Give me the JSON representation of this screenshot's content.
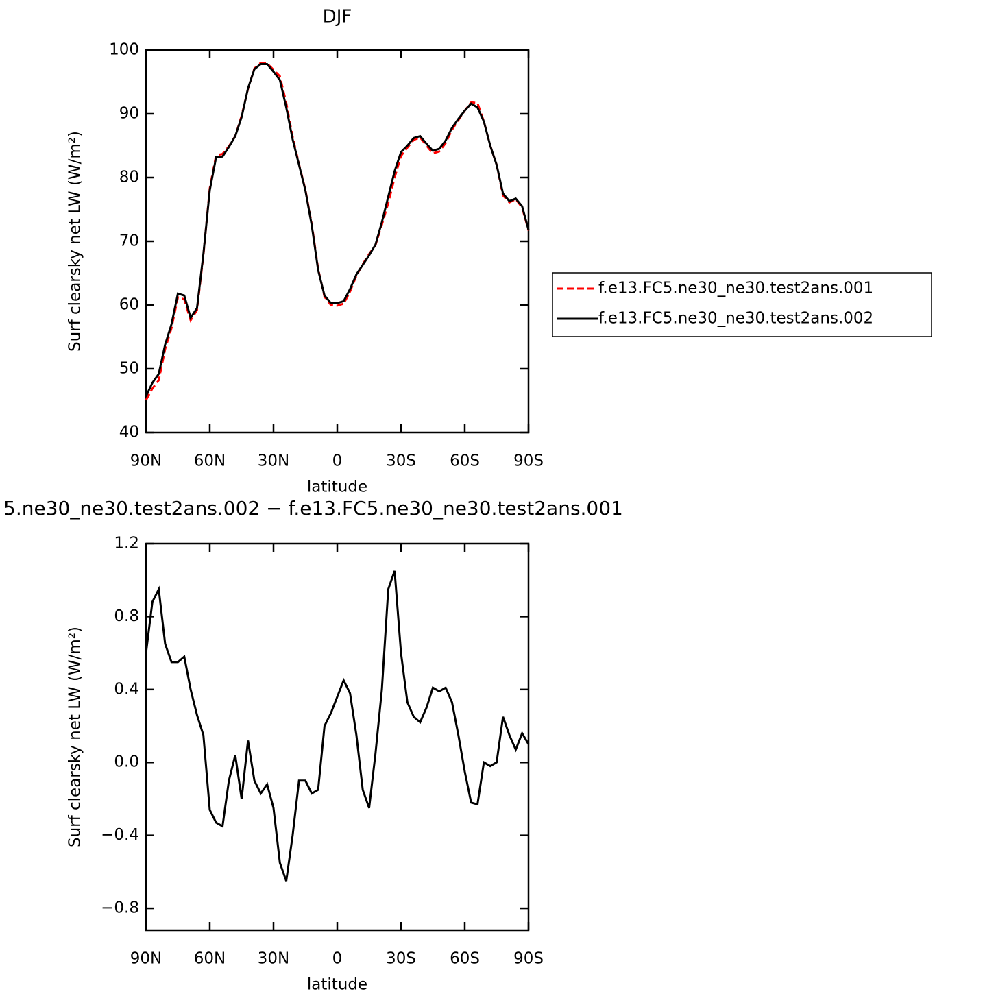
{
  "chart_data": [
    {
      "type": "line",
      "title": "DJF",
      "x_label": "latitude",
      "y_label": "Surf clearsky net LW (W/m²)",
      "x": [
        90,
        87,
        84,
        81,
        78,
        75,
        72,
        69,
        66,
        63,
        60,
        57,
        54,
        51,
        48,
        45,
        42,
        39,
        36,
        33,
        30,
        27,
        24,
        21,
        18,
        15,
        12,
        9,
        6,
        3,
        0,
        -3,
        -6,
        -9,
        -12,
        -15,
        -18,
        -21,
        -24,
        -27,
        -30,
        -33,
        -36,
        -39,
        -42,
        -45,
        -48,
        -51,
        -54,
        -57,
        -60,
        -63,
        -66,
        -69,
        -72,
        -75,
        -78,
        -81,
        -84,
        -87,
        -90
      ],
      "xlim": [
        90,
        -90
      ],
      "xticks": [
        {
          "value": 90,
          "label": "90N"
        },
        {
          "value": 60,
          "label": "60N"
        },
        {
          "value": 30,
          "label": "30N"
        },
        0,
        {
          "value": -30,
          "label": "30S"
        },
        {
          "value": -60,
          "label": "60S"
        },
        {
          "value": -90,
          "label": "90S"
        }
      ],
      "ylim": [
        40,
        100
      ],
      "yticks": [
        40,
        50,
        60,
        70,
        80,
        90,
        100
      ],
      "legend": "right",
      "series": [
        {
          "name": "f.e13.FC5.ne30_ne30.test2ans.001",
          "color": "#ff0000",
          "style": "dashed",
          "values": [
            45.1,
            46.9,
            48.2,
            53.1,
            56.4,
            61.2,
            60.9,
            57.6,
            59.2,
            67.8,
            78.3,
            83.5,
            83.7,
            84.9,
            86.5,
            89.7,
            93.9,
            97.1,
            98.0,
            97.9,
            96.9,
            95.9,
            91.7,
            86.4,
            82.1,
            78.1,
            72.7,
            65.7,
            61.3,
            60.0,
            59.9,
            60.2,
            62.1,
            64.6,
            66.4,
            68.0,
            69.4,
            72.6,
            76.0,
            80.0,
            83.4,
            84.7,
            85.9,
            86.3,
            85.0,
            83.8,
            84.1,
            85.4,
            87.5,
            89.0,
            90.5,
            91.8,
            91.7,
            88.8,
            85.0,
            82.0,
            77.2,
            76.1,
            76.6,
            75.3,
            71.7
          ]
        },
        {
          "name": "f.e13.FC5.ne30_ne30.test2ans.002",
          "color": "#000000",
          "style": "solid",
          "values": [
            45.7,
            47.8,
            49.2,
            53.8,
            57.0,
            61.8,
            61.5,
            58.0,
            59.5,
            68.0,
            78.0,
            83.2,
            83.3,
            84.8,
            86.5,
            89.5,
            94.0,
            97.0,
            97.8,
            97.8,
            96.6,
            95.3,
            91.0,
            86.0,
            82.0,
            78.0,
            72.5,
            65.5,
            61.5,
            60.3,
            60.3,
            60.6,
            62.5,
            64.8,
            66.3,
            67.8,
            69.5,
            73.0,
            77.0,
            81.0,
            84.0,
            85.0,
            86.2,
            86.5,
            85.3,
            84.2,
            84.5,
            85.8,
            87.8,
            89.2,
            90.5,
            91.6,
            91.0,
            88.8,
            85.0,
            82.0,
            77.5,
            76.3,
            76.7,
            75.5,
            71.8
          ]
        }
      ]
    },
    {
      "type": "line",
      "title": "5.ne30_ne30.test2ans.002 − f.e13.FC5.ne30_ne30.test2ans.001",
      "x_label": "latitude",
      "y_label": "Surf clearsky net LW (W/m²)",
      "x": [
        90,
        87,
        84,
        81,
        78,
        75,
        72,
        69,
        66,
        63,
        60,
        57,
        54,
        51,
        48,
        45,
        42,
        39,
        36,
        33,
        30,
        27,
        24,
        21,
        18,
        15,
        12,
        9,
        6,
        3,
        0,
        -3,
        -6,
        -9,
        -12,
        -15,
        -18,
        -21,
        -24,
        -27,
        -30,
        -33,
        -36,
        -39,
        -42,
        -45,
        -48,
        -51,
        -54,
        -57,
        -60,
        -63,
        -66,
        -69,
        -72,
        -75,
        -78,
        -81,
        -84,
        -87,
        -90
      ],
      "xlim": [
        90,
        -90
      ],
      "xticks": [
        {
          "value": 90,
          "label": "90N"
        },
        {
          "value": 60,
          "label": "60N"
        },
        {
          "value": 30,
          "label": "30N"
        },
        0,
        {
          "value": -30,
          "label": "30S"
        },
        {
          "value": -60,
          "label": "60S"
        },
        {
          "value": -90,
          "label": "90S"
        }
      ],
      "ylim": [
        -0.92,
        1.2
      ],
      "yticks": [
        {
          "value": -0.8,
          "label": "−0.8"
        },
        {
          "value": -0.4,
          "label": "−0.4"
        },
        {
          "value": 0,
          "label": "0.0"
        },
        0.4,
        0.8,
        1.2
      ],
      "series": [
        {
          "color": "#000000",
          "style": "solid",
          "values": [
            0.6,
            0.88,
            0.95,
            0.65,
            0.55,
            0.55,
            0.58,
            0.4,
            0.26,
            0.15,
            -0.26,
            -0.33,
            -0.35,
            -0.1,
            0.04,
            -0.2,
            0.12,
            -0.1,
            -0.17,
            -0.12,
            -0.25,
            -0.55,
            -0.65,
            -0.4,
            -0.1,
            -0.1,
            -0.17,
            -0.15,
            0.2,
            0.27,
            0.36,
            0.45,
            0.38,
            0.15,
            -0.15,
            -0.25,
            0.05,
            0.4,
            0.95,
            1.05,
            0.6,
            0.33,
            0.25,
            0.22,
            0.3,
            0.41,
            0.39,
            0.41,
            0.33,
            0.15,
            -0.05,
            -0.22,
            -0.23,
            0.0,
            -0.02,
            0.0,
            0.25,
            0.15,
            0.07,
            0.16,
            0.1
          ]
        }
      ]
    }
  ]
}
